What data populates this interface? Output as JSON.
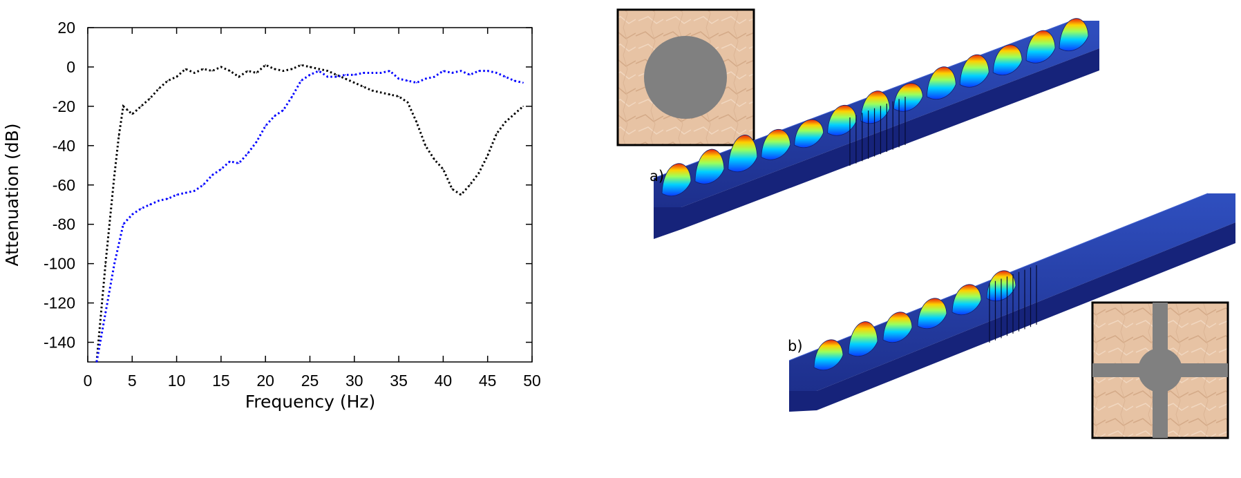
{
  "chart_data": {
    "type": "line",
    "title": "",
    "xlabel": "Frequency (Hz)",
    "ylabel": "Attenuation (dB)",
    "xlim": [
      0,
      50
    ],
    "ylim": [
      -150,
      20
    ],
    "xticks": [
      0,
      5,
      10,
      15,
      20,
      25,
      30,
      35,
      40,
      45,
      50
    ],
    "yticks": [
      20,
      0,
      -20,
      -40,
      -60,
      -80,
      -100,
      -120,
      -140
    ],
    "grid": false,
    "line_style": "dotted",
    "series": [
      {
        "color": "#000000",
        "x": [
          1,
          2,
          3,
          3.5,
          4,
          4.5,
          5,
          5.5,
          6,
          7,
          8,
          9,
          10,
          11,
          12,
          13,
          14,
          15,
          16,
          17,
          18,
          19,
          20,
          21,
          22,
          23,
          24,
          25,
          26,
          27,
          28,
          29,
          30,
          31,
          32,
          33,
          34,
          35,
          36,
          37,
          38,
          39,
          40,
          41,
          42,
          43,
          44,
          45,
          46,
          47,
          48,
          49
        ],
        "y": [
          -150,
          -100,
          -55,
          -35,
          -20,
          -22,
          -24,
          -22,
          -20,
          -16,
          -11,
          -7,
          -5,
          -1,
          -3,
          -1,
          -2,
          0,
          -2,
          -5,
          -2,
          -3,
          1,
          -1,
          -2,
          -1,
          1,
          0,
          -1,
          -2,
          -4,
          -6,
          -8,
          -10,
          -12,
          -13,
          -14,
          -15,
          -18,
          -28,
          -40,
          -47,
          -52,
          -62,
          -65,
          -60,
          -54,
          -45,
          -34,
          -28,
          -24,
          -20
        ]
      },
      {
        "color": "#0000ff",
        "x": [
          1,
          2,
          3,
          4,
          5,
          6,
          7,
          8,
          9,
          10,
          11,
          12,
          13,
          14,
          15,
          16,
          17,
          18,
          19,
          20,
          21,
          22,
          23,
          24,
          25,
          26,
          27,
          28,
          29,
          30,
          31,
          32,
          33,
          34,
          35,
          36,
          37,
          38,
          39,
          40,
          41,
          42,
          43,
          44,
          45,
          46,
          47,
          48,
          49
        ],
        "y": [
          -150,
          -125,
          -100,
          -80,
          -75,
          -72,
          -70,
          -68,
          -67,
          -65,
          -64,
          -63,
          -60,
          -55,
          -52,
          -48,
          -49,
          -44,
          -38,
          -30,
          -25,
          -22,
          -15,
          -7,
          -4,
          -2,
          -5,
          -5,
          -4,
          -4,
          -3,
          -3,
          -3,
          -2,
          -6,
          -7,
          -8,
          -6,
          -5,
          -2,
          -3,
          -2,
          -4,
          -2,
          -2,
          -3,
          -5,
          -7,
          -8
        ]
      }
    ]
  },
  "figure": {
    "panel_a_label": "a)",
    "panel_b_label": "b)"
  }
}
